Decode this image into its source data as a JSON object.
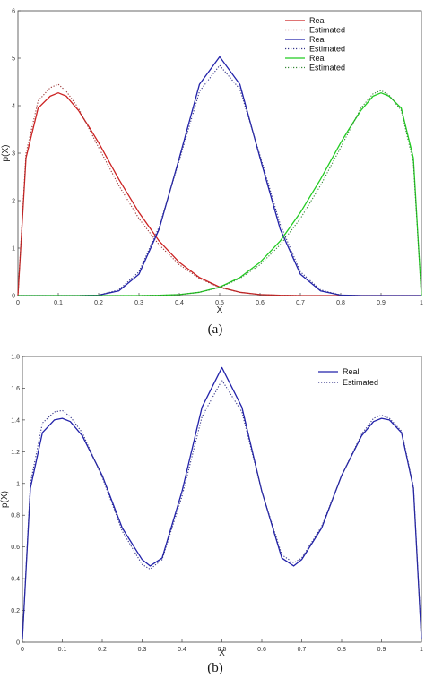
{
  "chart_data": [
    {
      "type": "line",
      "caption": "(a)",
      "xlabel": "X",
      "ylabel": "p(X)",
      "xlim": [
        0,
        1
      ],
      "ylim": [
        0,
        6
      ],
      "x_ticks": [
        "0",
        "0.1",
        "0.2",
        "0.3",
        "0.4",
        "0.5",
        "0.6",
        "0.7",
        "0.8",
        "0.9",
        "1"
      ],
      "y_ticks": [
        "0",
        "1",
        "2",
        "3",
        "4",
        "5",
        "6"
      ],
      "grid": false,
      "legend_position": "top-right",
      "x": [
        0,
        0.02,
        0.05,
        0.08,
        0.1,
        0.12,
        0.15,
        0.18,
        0.2,
        0.25,
        0.3,
        0.35,
        0.4,
        0.45,
        0.5,
        0.55,
        0.6,
        0.65,
        0.7,
        0.75,
        0.8,
        0.82,
        0.85,
        0.88,
        0.9,
        0.92,
        0.95,
        0.98,
        1
      ],
      "series": [
        {
          "name": "Real",
          "color": "#cc2222",
          "style": "solid",
          "values": [
            0,
            2.9,
            3.95,
            4.2,
            4.27,
            4.2,
            3.9,
            3.5,
            3.22,
            2.45,
            1.75,
            1.15,
            0.7,
            0.38,
            0.18,
            0.07,
            0.02,
            0.005,
            0,
            0,
            0,
            0,
            0,
            0,
            0,
            0,
            0,
            0,
            0
          ]
        },
        {
          "name": "Estimated",
          "color": "#993333",
          "style": "dotted",
          "values": [
            0,
            3.0,
            4.1,
            4.38,
            4.45,
            4.3,
            3.95,
            3.45,
            3.12,
            2.32,
            1.62,
            1.07,
            0.65,
            0.36,
            0.17,
            0.07,
            0.02,
            0.005,
            0,
            0,
            0,
            0,
            0,
            0,
            0,
            0,
            0,
            0,
            0
          ]
        },
        {
          "name": "Real",
          "color": "#2222aa",
          "style": "solid",
          "values": [
            0,
            0,
            0,
            0,
            0,
            0,
            0,
            0.005,
            0.01,
            0.1,
            0.45,
            1.4,
            2.9,
            4.45,
            5.03,
            4.45,
            2.9,
            1.4,
            0.45,
            0.1,
            0.01,
            0.005,
            0,
            0,
            0,
            0,
            0,
            0,
            0
          ]
        },
        {
          "name": "Estimated",
          "color": "#333388",
          "style": "dotted",
          "values": [
            0,
            0,
            0,
            0,
            0,
            0,
            0,
            0.005,
            0.01,
            0.12,
            0.5,
            1.45,
            2.85,
            4.3,
            4.85,
            4.35,
            2.95,
            1.5,
            0.5,
            0.12,
            0.01,
            0.005,
            0,
            0,
            0,
            0,
            0,
            0,
            0
          ]
        },
        {
          "name": "Real",
          "color": "#22cc22",
          "style": "solid",
          "values": [
            0,
            0,
            0,
            0,
            0,
            0,
            0,
            0,
            0,
            0,
            0,
            0.005,
            0.02,
            0.07,
            0.18,
            0.38,
            0.7,
            1.15,
            1.75,
            2.45,
            3.22,
            3.5,
            3.9,
            4.2,
            4.27,
            4.2,
            3.95,
            2.9,
            0
          ]
        },
        {
          "name": "Estimated",
          "color": "#338833",
          "style": "dotted",
          "values": [
            0,
            0,
            0,
            0,
            0,
            0,
            0,
            0,
            0,
            0,
            0,
            0.005,
            0.02,
            0.07,
            0.17,
            0.36,
            0.65,
            1.07,
            1.62,
            2.32,
            3.12,
            3.45,
            3.95,
            4.25,
            4.32,
            4.22,
            3.9,
            2.8,
            0
          ]
        }
      ]
    },
    {
      "type": "line",
      "caption": "(b)",
      "xlabel": "X",
      "ylabel": "p(X)",
      "xlim": [
        0,
        1
      ],
      "ylim": [
        0,
        1.8
      ],
      "x_ticks": [
        "0",
        "0.1",
        "0.2",
        "0.3",
        "0.4",
        "0.5",
        "0.6",
        "0.7",
        "0.8",
        "0.9",
        "1"
      ],
      "y_ticks": [
        "0",
        "0.2",
        "0.4",
        "0.6",
        "0.8",
        "1",
        "1.2",
        "1.4",
        "1.6",
        "1.8"
      ],
      "grid": false,
      "legend_position": "top-right",
      "x": [
        0,
        0.02,
        0.05,
        0.08,
        0.1,
        0.12,
        0.15,
        0.2,
        0.25,
        0.3,
        0.32,
        0.35,
        0.4,
        0.45,
        0.5,
        0.55,
        0.6,
        0.65,
        0.68,
        0.7,
        0.75,
        0.8,
        0.85,
        0.88,
        0.9,
        0.92,
        0.95,
        0.98,
        1
      ],
      "series": [
        {
          "name": "Real",
          "color": "#2222aa",
          "style": "solid",
          "values": [
            0.02,
            0.97,
            1.32,
            1.4,
            1.41,
            1.39,
            1.3,
            1.05,
            0.72,
            0.52,
            0.48,
            0.53,
            0.95,
            1.48,
            1.73,
            1.48,
            0.95,
            0.53,
            0.48,
            0.52,
            0.72,
            1.05,
            1.3,
            1.39,
            1.41,
            1.4,
            1.32,
            0.97,
            0.02
          ]
        },
        {
          "name": "Estimated",
          "color": "#333388",
          "style": "dotted",
          "values": [
            0.02,
            1.0,
            1.38,
            1.45,
            1.46,
            1.42,
            1.32,
            1.04,
            0.7,
            0.49,
            0.46,
            0.52,
            0.92,
            1.42,
            1.65,
            1.45,
            0.95,
            0.55,
            0.5,
            0.53,
            0.73,
            1.05,
            1.31,
            1.41,
            1.43,
            1.41,
            1.33,
            0.98,
            0.02
          ]
        }
      ]
    }
  ]
}
